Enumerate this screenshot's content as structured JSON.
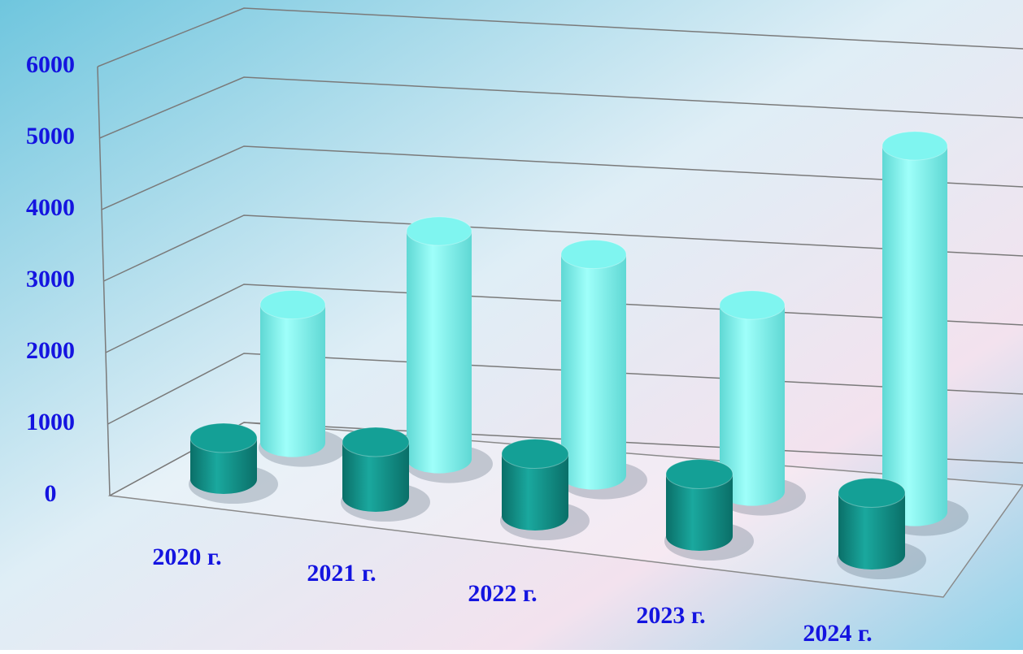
{
  "chart_data": {
    "type": "bar3d",
    "categories": [
      "2020 г.",
      "2021 г.",
      "2022 г.",
      "2023 г.",
      "2024 г."
    ],
    "series": [
      {
        "color": "#14a096",
        "values": [
          600,
          800,
          900,
          900,
          900
        ]
      },
      {
        "color": "#7ff5f0",
        "values": [
          2000,
          3300,
          3200,
          2700,
          5300
        ]
      }
    ],
    "ylim": [
      0,
      6000
    ],
    "yticks": [
      0,
      1000,
      2000,
      3000,
      4000,
      5000,
      6000
    ],
    "grid": true
  }
}
